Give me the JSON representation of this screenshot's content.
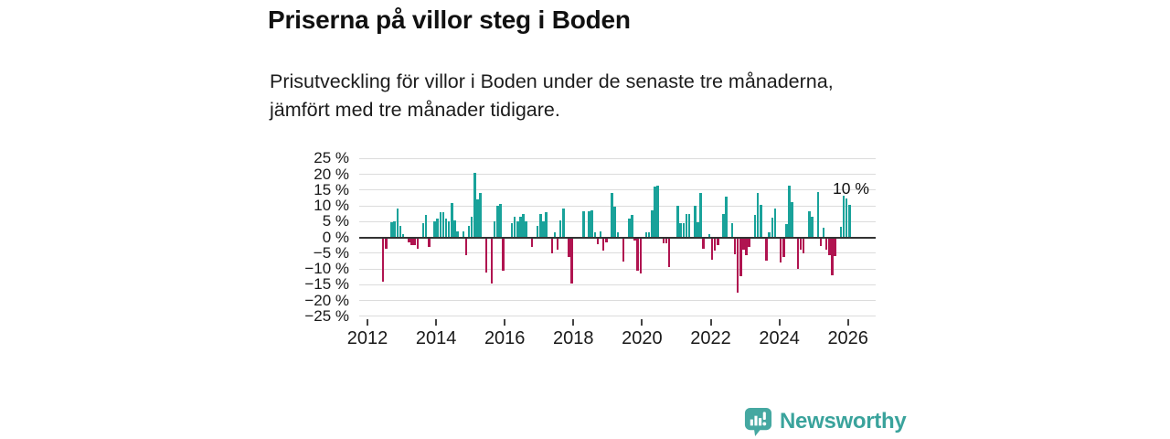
{
  "header": {
    "title": "Priserna på villor steg i Boden",
    "subtitle": "Prisutveckling för villor i Boden under de senaste tre månaderna, jämfört med tre månader tidigare."
  },
  "footer": {
    "brand": "Newsworthy"
  },
  "colors": {
    "positive": "#19a29a",
    "negative": "#b01450",
    "grid": "#dcdcdc",
    "axis": "#333333",
    "text": "#1a1a1a",
    "brand": "#3aa39c"
  },
  "chart_data": {
    "type": "bar",
    "title": "Priserna på villor steg i Boden",
    "unit": "%",
    "interval": "monthly",
    "first_month": "2012-06",
    "last_month": "2026-01",
    "ylim": [
      -25,
      25
    ],
    "grid": true,
    "annotation": {
      "text": "10 %",
      "refers_to": "latest bar"
    },
    "y_ticks": [
      {
        "value": 25,
        "label": "25 %"
      },
      {
        "value": 20,
        "label": "20 %"
      },
      {
        "value": 15,
        "label": "15 %"
      },
      {
        "value": 10,
        "label": "10 %"
      },
      {
        "value": 5,
        "label": "5 %"
      },
      {
        "value": 0,
        "label": "0 %"
      },
      {
        "value": -5,
        "label": "−5 %"
      },
      {
        "value": -10,
        "label": "−10 %"
      },
      {
        "value": -15,
        "label": "−15 %"
      },
      {
        "value": -20,
        "label": "−20 %"
      },
      {
        "value": -25,
        "label": "−25 %"
      }
    ],
    "x_ticks": [
      {
        "year": 2012,
        "label": "2012"
      },
      {
        "year": 2014,
        "label": "2014"
      },
      {
        "year": 2016,
        "label": "2016"
      },
      {
        "year": 2018,
        "label": "2018"
      },
      {
        "year": 2020,
        "label": "2020"
      },
      {
        "year": 2022,
        "label": "2022"
      },
      {
        "year": 2024,
        "label": "2024"
      },
      {
        "year": 2026,
        "label": "2026"
      }
    ],
    "values": [
      -14,
      -3.5,
      null,
      4.7,
      5,
      9,
      3.5,
      1,
      null,
      -1.5,
      -2.5,
      -2.5,
      -3.5,
      null,
      4.5,
      7,
      -3,
      null,
      5.2,
      6.1,
      8.1,
      8,
      6,
      5,
      11,
      5.5,
      2,
      null,
      2,
      -5.5,
      3.5,
      6.5,
      20.5,
      12,
      14,
      null,
      -11,
      null,
      -14.5,
      5,
      10,
      10.5,
      -10.7,
      null,
      null,
      4.4,
      6.4,
      5,
      6.5,
      7.3,
      5,
      null,
      -3,
      null,
      3.5,
      7.5,
      5,
      7.9,
      null,
      -5.2,
      1.5,
      -4,
      5.5,
      9,
      null,
      -6.3,
      -14.7,
      null,
      null,
      null,
      8.2,
      null,
      8.3,
      8.7,
      1.5,
      -2.2,
      2,
      -4.1,
      -1.5,
      null,
      14,
      9.7,
      1.5,
      null,
      -7.8,
      null,
      6,
      7,
      -1,
      -10.7,
      -11.3,
      null,
      1.5,
      1.5,
      8.7,
      16,
      16.3,
      null,
      -2,
      -2,
      -9.5,
      null,
      null,
      10,
      4.5,
      4.5,
      7.3,
      7.3,
      null,
      9.9,
      4.8,
      14,
      -3.5,
      null,
      1,
      -7,
      -4.2,
      -2.5,
      null,
      7.3,
      13,
      null,
      4.5,
      -5.3,
      -17.5,
      -12.2,
      -4,
      -5.5,
      -3,
      null,
      7,
      14,
      10.4,
      null,
      -7.5,
      1.5,
      6.3,
      9,
      null,
      -8.1,
      -6.1,
      4.2,
      16.5,
      11.2,
      null,
      -9.9,
      -4,
      -5,
      null,
      8.2,
      6.6,
      null,
      14.5,
      -2.6,
      3.1,
      -4,
      -5.5,
      -12,
      -6,
      null,
      3.4,
      13.1,
      12.4,
      10.2
    ]
  }
}
